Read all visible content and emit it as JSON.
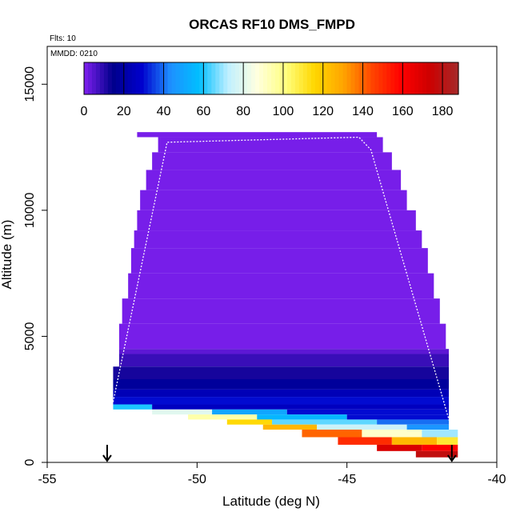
{
  "chart_data": {
    "type": "heatmap",
    "title": "ORCAS RF10 DMS_FMPD",
    "subtitle_flights": "Flts: 10",
    "subtitle_date": "MMDD: 0210",
    "xlabel": "Latitude (deg N)",
    "ylabel": "Altitude (m)",
    "xlim": [
      -55,
      -40
    ],
    "ylim": [
      0,
      16500
    ],
    "x_ticks": [
      -55,
      -50,
      -45,
      -40
    ],
    "y_ticks": [
      0,
      5000,
      10000,
      15000
    ],
    "colorbar": {
      "min": 0,
      "max": 188,
      "ticks": [
        0,
        20,
        40,
        60,
        80,
        100,
        120,
        140,
        160,
        180
      ],
      "colors": [
        "#8020f0",
        "#00008b",
        "#0000cd",
        "#1e90ff",
        "#00bfff",
        "#bfefff",
        "#ffffe0",
        "#ffff80",
        "#ffd700",
        "#ffa500",
        "#ff4500",
        "#ff0000",
        "#cd0000",
        "#a52a2a"
      ]
    },
    "flight_arrows_lat": [
      -53,
      -41.5
    ],
    "flight_track": [
      [
        -52.8,
        2400
      ],
      [
        -51.0,
        12700
      ],
      [
        -44.6,
        12900
      ],
      [
        -44.2,
        12400
      ],
      [
        -41.5,
        1300
      ]
    ],
    "cells": [
      {
        "x0": -52.0,
        "x1": -44.0,
        "y0": 12900,
        "y1": 13100,
        "v": 1
      },
      {
        "x0": -51.3,
        "x1": -43.8,
        "y0": 12300,
        "y1": 12900,
        "v": 1
      },
      {
        "x0": -51.5,
        "x1": -43.5,
        "y0": 11600,
        "y1": 12300,
        "v": 1
      },
      {
        "x0": -51.7,
        "x1": -43.2,
        "y0": 10800,
        "y1": 11600,
        "v": 1
      },
      {
        "x0": -51.9,
        "x1": -43.0,
        "y0": 10000,
        "y1": 10800,
        "v": 1
      },
      {
        "x0": -52.0,
        "x1": -42.7,
        "y0": 9200,
        "y1": 10000,
        "v": 1
      },
      {
        "x0": -52.1,
        "x1": -42.5,
        "y0": 8500,
        "y1": 9200,
        "v": 1
      },
      {
        "x0": -52.2,
        "x1": -42.3,
        "y0": 7500,
        "y1": 8500,
        "v": 1
      },
      {
        "x0": -52.3,
        "x1": -42.1,
        "y0": 6500,
        "y1": 7500,
        "v": 1
      },
      {
        "x0": -52.5,
        "x1": -41.9,
        "y0": 5500,
        "y1": 6500,
        "v": 1
      },
      {
        "x0": -52.6,
        "x1": -41.7,
        "y0": 4500,
        "y1": 5500,
        "v": 1
      },
      {
        "x0": -52.6,
        "x1": -41.6,
        "y0": 4300,
        "y1": 4500,
        "v": 4
      },
      {
        "x0": -52.6,
        "x1": -41.6,
        "y0": 3800,
        "y1": 4300,
        "v": 8
      },
      {
        "x0": -52.8,
        "x1": -41.6,
        "y0": 3300,
        "y1": 3800,
        "v": 12
      },
      {
        "x0": -52.8,
        "x1": -41.6,
        "y0": 2900,
        "y1": 3300,
        "v": 18
      },
      {
        "x0": -52.8,
        "x1": -41.6,
        "y0": 2600,
        "y1": 2900,
        "v": 24
      },
      {
        "x0": -52.8,
        "x1": -41.6,
        "y0": 2300,
        "y1": 2600,
        "v": 30
      },
      {
        "x0": -52.8,
        "x1": -51.5,
        "y0": 2100,
        "y1": 2300,
        "v": 60
      },
      {
        "x0": -51.5,
        "x1": -41.6,
        "y0": 2100,
        "y1": 2300,
        "v": 26
      },
      {
        "x0": -51.5,
        "x1": -49.5,
        "y0": 1900,
        "y1": 2100,
        "v": 80
      },
      {
        "x0": -49.5,
        "x1": -47.0,
        "y0": 1900,
        "y1": 2100,
        "v": 50
      },
      {
        "x0": -47.0,
        "x1": -41.6,
        "y0": 1900,
        "y1": 2100,
        "v": 30
      },
      {
        "x0": -50.3,
        "x1": -48.0,
        "y0": 1700,
        "y1": 1900,
        "v": 95
      },
      {
        "x0": -48.0,
        "x1": -45.0,
        "y0": 1700,
        "y1": 1900,
        "v": 55
      },
      {
        "x0": -45.0,
        "x1": -41.6,
        "y0": 1700,
        "y1": 1900,
        "v": 30
      },
      {
        "x0": -49.0,
        "x1": -47.5,
        "y0": 1500,
        "y1": 1700,
        "v": 115
      },
      {
        "x0": -47.5,
        "x1": -44.0,
        "y0": 1500,
        "y1": 1700,
        "v": 65
      },
      {
        "x0": -44.0,
        "x1": -41.6,
        "y0": 1500,
        "y1": 1700,
        "v": 40
      },
      {
        "x0": -47.8,
        "x1": -46.0,
        "y0": 1300,
        "y1": 1500,
        "v": 125
      },
      {
        "x0": -46.0,
        "x1": -43.0,
        "y0": 1300,
        "y1": 1500,
        "v": 75
      },
      {
        "x0": -43.0,
        "x1": -41.6,
        "y0": 1300,
        "y1": 1500,
        "v": 45
      },
      {
        "x0": -46.5,
        "x1": -44.5,
        "y0": 1000,
        "y1": 1300,
        "v": 140
      },
      {
        "x0": -44.5,
        "x1": -42.5,
        "y0": 1000,
        "y1": 1300,
        "v": 90
      },
      {
        "x0": -42.5,
        "x1": -41.3,
        "y0": 1000,
        "y1": 1300,
        "v": 70
      },
      {
        "x0": -45.3,
        "x1": -43.5,
        "y0": 700,
        "y1": 1000,
        "v": 150
      },
      {
        "x0": -43.5,
        "x1": -42.0,
        "y0": 700,
        "y1": 1000,
        "v": 125
      },
      {
        "x0": -42.0,
        "x1": -41.3,
        "y0": 700,
        "y1": 1000,
        "v": 110
      },
      {
        "x0": -44.0,
        "x1": -42.5,
        "y0": 450,
        "y1": 700,
        "v": 170
      },
      {
        "x0": -42.5,
        "x1": -41.3,
        "y0": 450,
        "y1": 700,
        "v": 160
      },
      {
        "x0": -42.7,
        "x1": -41.3,
        "y0": 200,
        "y1": 450,
        "v": 178
      }
    ]
  }
}
